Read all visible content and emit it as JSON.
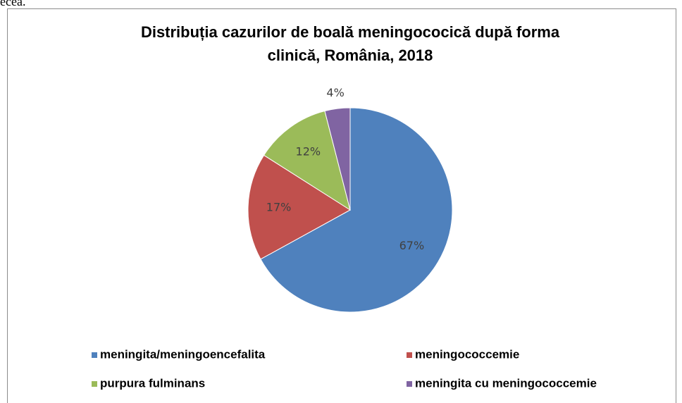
{
  "page_fragment": "ecea.",
  "chart_data": {
    "type": "pie",
    "title": "Distribuția cazurilor de boală meningococică după forma clinică, România, 2018",
    "categories": [
      "meningita/meningoencefalita",
      "meningococcemie",
      "purpura fulminans",
      "meningita cu meningococcemie"
    ],
    "values": [
      67,
      17,
      12,
      4
    ],
    "value_labels": [
      "67%",
      "17%",
      "12%",
      "4%"
    ],
    "colors": [
      "#4f81bd",
      "#c0504d",
      "#9bbb59",
      "#8064a2"
    ],
    "legend": "bottom"
  }
}
